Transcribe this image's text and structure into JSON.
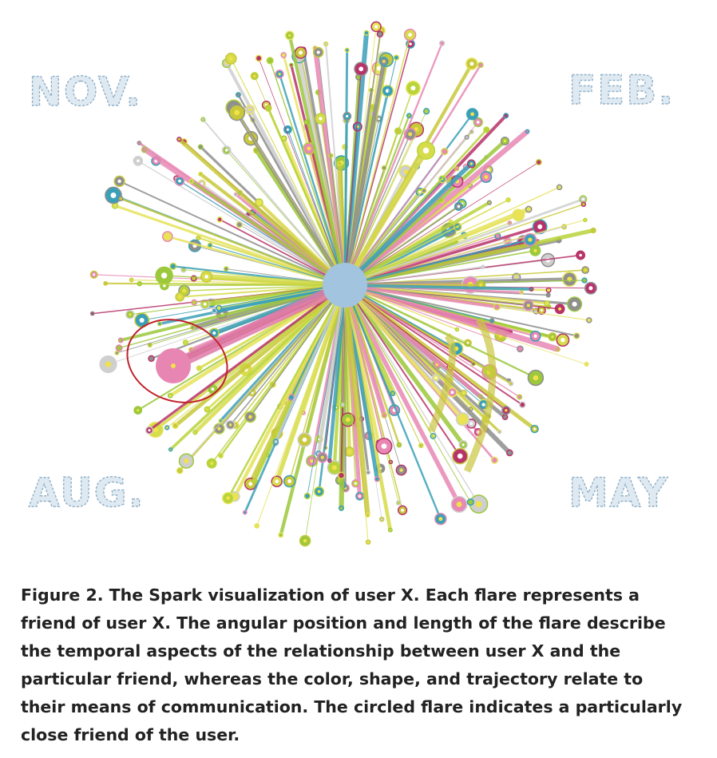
{
  "figure": {
    "month_labels": [
      "NOV.",
      "FEB.",
      "AUG.",
      "MAY"
    ],
    "caption": "Figure 2. The Spark visualization of user X. Each flare represents a friend of user X. The angular position and length of the flare describe the temporal aspects of the relationship between user X and the particular friend, whereas the color, shape, and trajectory relate to their means of communication. The circled flare indicates a particularly close friend of the user."
  }
}
